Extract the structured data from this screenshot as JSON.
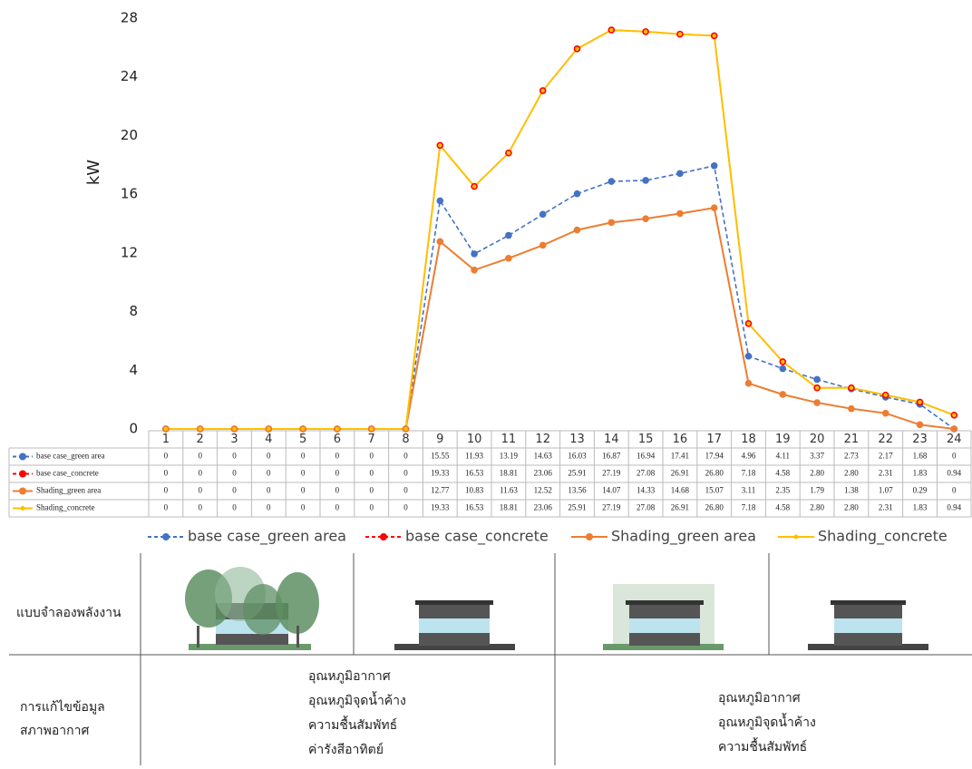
{
  "chart_data": {
    "type": "line",
    "y_label": "kW",
    "x": [
      1,
      2,
      3,
      4,
      5,
      6,
      7,
      8,
      9,
      10,
      11,
      12,
      13,
      14,
      15,
      16,
      17,
      18,
      19,
      20,
      21,
      22,
      23,
      24
    ],
    "ylim": [
      0,
      28
    ],
    "yticks": [
      0,
      4,
      8,
      12,
      16,
      20,
      24,
      28
    ],
    "grid": false,
    "series": [
      {
        "name": "base case_green area",
        "color": "#4472c4",
        "line_style": "dashed",
        "values": [
          0,
          0,
          0,
          0,
          0,
          0,
          0,
          0,
          15.55,
          11.93,
          13.19,
          14.63,
          16.03,
          16.87,
          16.94,
          17.41,
          17.94,
          4.96,
          4.11,
          3.37,
          2.73,
          2.17,
          1.68,
          0
        ],
        "value_labels": [
          "0",
          "0",
          "0",
          "0",
          "0",
          "0",
          "0",
          "0",
          "15.55",
          "11.93",
          "13.19",
          "14.63",
          "16.03",
          "16.87",
          "16.94",
          "17.41",
          "17.94",
          "4.96",
          "4.11",
          "3.37",
          "2.73",
          "2.17",
          "1.68",
          "0"
        ]
      },
      {
        "name": "base case_concrete",
        "color": "#ff0000",
        "line_style": "dashed",
        "values": [
          0,
          0,
          0,
          0,
          0,
          0,
          0,
          0,
          19.33,
          16.53,
          18.81,
          23.06,
          25.91,
          27.19,
          27.08,
          26.91,
          26.8,
          7.18,
          4.58,
          2.8,
          2.8,
          2.31,
          1.83,
          0.94
        ],
        "value_labels": [
          "0",
          "0",
          "0",
          "0",
          "0",
          "0",
          "0",
          "0",
          "19.33",
          "16.53",
          "18.81",
          "23.06",
          "25.91",
          "27.19",
          "27.08",
          "26.91",
          "26.80",
          "7.18",
          "4.58",
          "2.80",
          "2.80",
          "2.31",
          "1.83",
          "0.94"
        ]
      },
      {
        "name": "Shading_green area",
        "color": "#ed7d31",
        "line_style": "solid",
        "values": [
          0,
          0,
          0,
          0,
          0,
          0,
          0,
          0,
          12.77,
          10.83,
          11.63,
          12.52,
          13.56,
          14.07,
          14.33,
          14.68,
          15.07,
          3.11,
          2.35,
          1.79,
          1.38,
          1.07,
          0.29,
          0
        ],
        "value_labels": [
          "0",
          "0",
          "0",
          "0",
          "0",
          "0",
          "0",
          "0",
          "12.77",
          "10.83",
          "11.63",
          "12.52",
          "13.56",
          "14.07",
          "14.33",
          "14.68",
          "15.07",
          "3.11",
          "2.35",
          "1.79",
          "1.38",
          "1.07",
          "0.29",
          "0"
        ]
      },
      {
        "name": "Shading_concrete",
        "color": "#ffc000",
        "line_style": "solid",
        "values": [
          0,
          0,
          0,
          0,
          0,
          0,
          0,
          0,
          19.33,
          16.53,
          18.81,
          23.06,
          25.91,
          27.19,
          27.08,
          26.91,
          26.8,
          7.18,
          4.58,
          2.8,
          2.8,
          2.31,
          1.83,
          0.94
        ],
        "value_labels": [
          "0",
          "0",
          "0",
          "0",
          "0",
          "0",
          "0",
          "0",
          "19.33",
          "16.53",
          "18.81",
          "23.06",
          "25.91",
          "27.19",
          "27.08",
          "26.91",
          "26.80",
          "7.18",
          "4.58",
          "2.80",
          "2.80",
          "2.31",
          "1.83",
          "0.94"
        ]
      }
    ]
  },
  "diagram": {
    "row1_label": "แบบจำลองพลังงาน",
    "row2_label": [
      "การแก้ไขข้อมูล",
      "สภาพอากาศ"
    ],
    "group1_items": [
      "อุณหภูมิอากาศ",
      "อุณหภูมิจุดน้ำค้าง",
      "ความชื้นสัมพัทธ์",
      "ค่ารังสีอาทิตย์"
    ],
    "group2_items": [
      "อุณหภูมิอากาศ",
      "อุณหภูมิจุดน้ำค้าง",
      "ความชื้นสัมพัทธ์"
    ]
  }
}
